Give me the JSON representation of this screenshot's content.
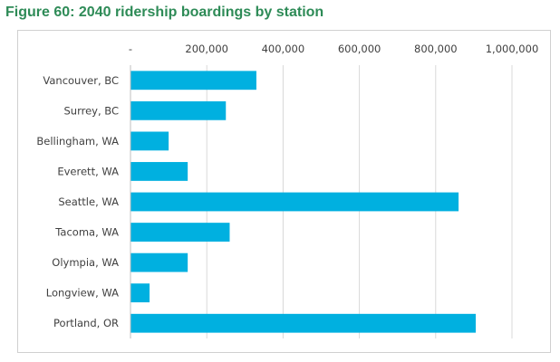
{
  "figure_title": "Figure 60: 2040 ridership boardings by station",
  "colors": {
    "bar": "#00b0e0",
    "title": "#2e8b57",
    "grid": "#d9d9d9"
  },
  "chart_data": {
    "type": "bar",
    "orientation": "horizontal",
    "title": "Figure 60: 2040 ridership boardings by station",
    "xlabel": "",
    "ylabel": "",
    "categories": [
      "Vancouver, BC",
      "Surrey, BC",
      "Bellingham, WA",
      "Everett, WA",
      "Seattle, WA",
      "Tacoma, WA",
      "Olympia, WA",
      "Longview, WA",
      "Portland, OR"
    ],
    "values": [
      330000,
      250000,
      100000,
      150000,
      860000,
      260000,
      150000,
      50000,
      905000
    ],
    "xlim": [
      0,
      1000000
    ],
    "tick_values": [
      0,
      200000,
      400000,
      600000,
      800000,
      1000000
    ],
    "tick_labels": [
      "-",
      "200,000",
      "400,000",
      "600,000",
      "800,000",
      "1,000,000"
    ],
    "axis_position": "top",
    "grid": true,
    "legend": false
  }
}
